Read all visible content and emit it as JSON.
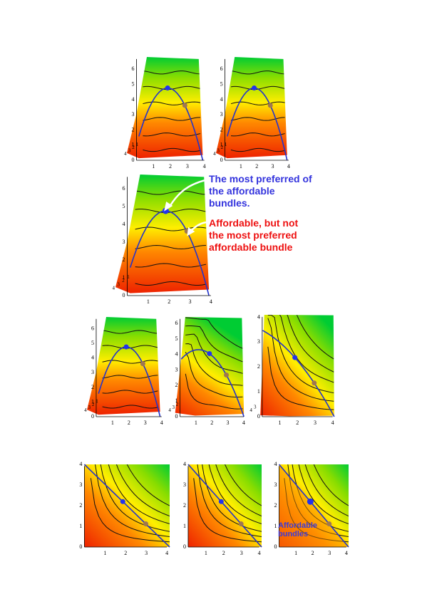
{
  "panels": [
    {
      "y_ticks": [
        0,
        1,
        2,
        3,
        4,
        5,
        6
      ],
      "x_ticks": [
        1,
        2,
        3,
        4
      ],
      "depth_ticks": [
        4,
        3,
        2,
        1
      ]
    },
    {
      "y_ticks": [
        0,
        1,
        2,
        3,
        4,
        5,
        6
      ],
      "x_ticks": [
        1,
        2,
        3,
        4
      ],
      "depth_ticks": [
        4,
        3,
        2,
        1
      ]
    },
    {
      "y_ticks": [
        0,
        1,
        2,
        3,
        4,
        5,
        6
      ],
      "x_ticks": [
        1,
        2,
        3,
        4
      ],
      "depth_ticks": [
        4,
        3,
        2,
        1
      ]
    },
    {
      "y_ticks": [
        0,
        1,
        2,
        3,
        4,
        5,
        6
      ],
      "x_ticks": [
        1,
        2,
        3,
        4
      ],
      "depth_ticks": [
        4,
        3,
        2,
        1
      ]
    },
    {
      "y_ticks": [
        0,
        1,
        2,
        3,
        4,
        5,
        6
      ],
      "x_ticks": [
        1,
        2,
        3,
        4
      ],
      "depth_ticks": [
        4,
        3,
        2
      ]
    },
    {
      "y_ticks": [
        0,
        1,
        2,
        3,
        4
      ],
      "x_ticks": [
        1,
        2,
        3,
        4
      ],
      "depth_ticks": [
        4,
        3
      ]
    },
    {
      "y_ticks": [
        0,
        1,
        2,
        3,
        4
      ],
      "x_ticks": [
        1,
        2,
        3,
        4
      ],
      "depth_ticks": []
    },
    {
      "y_ticks": [
        0,
        1,
        2,
        3,
        4
      ],
      "x_ticks": [
        1,
        2,
        3,
        4
      ],
      "depth_ticks": []
    },
    {
      "y_ticks": [
        0,
        1,
        2,
        3,
        4
      ],
      "x_ticks": [
        1,
        2,
        3,
        4
      ],
      "depth_ticks": []
    }
  ],
  "annotations": {
    "preferred": "The most preferred of the affordable bundles.",
    "not_preferred": "Affordable, but not the most preferred affordable bundle",
    "affordable_region": "Affordable bundles"
  }
}
